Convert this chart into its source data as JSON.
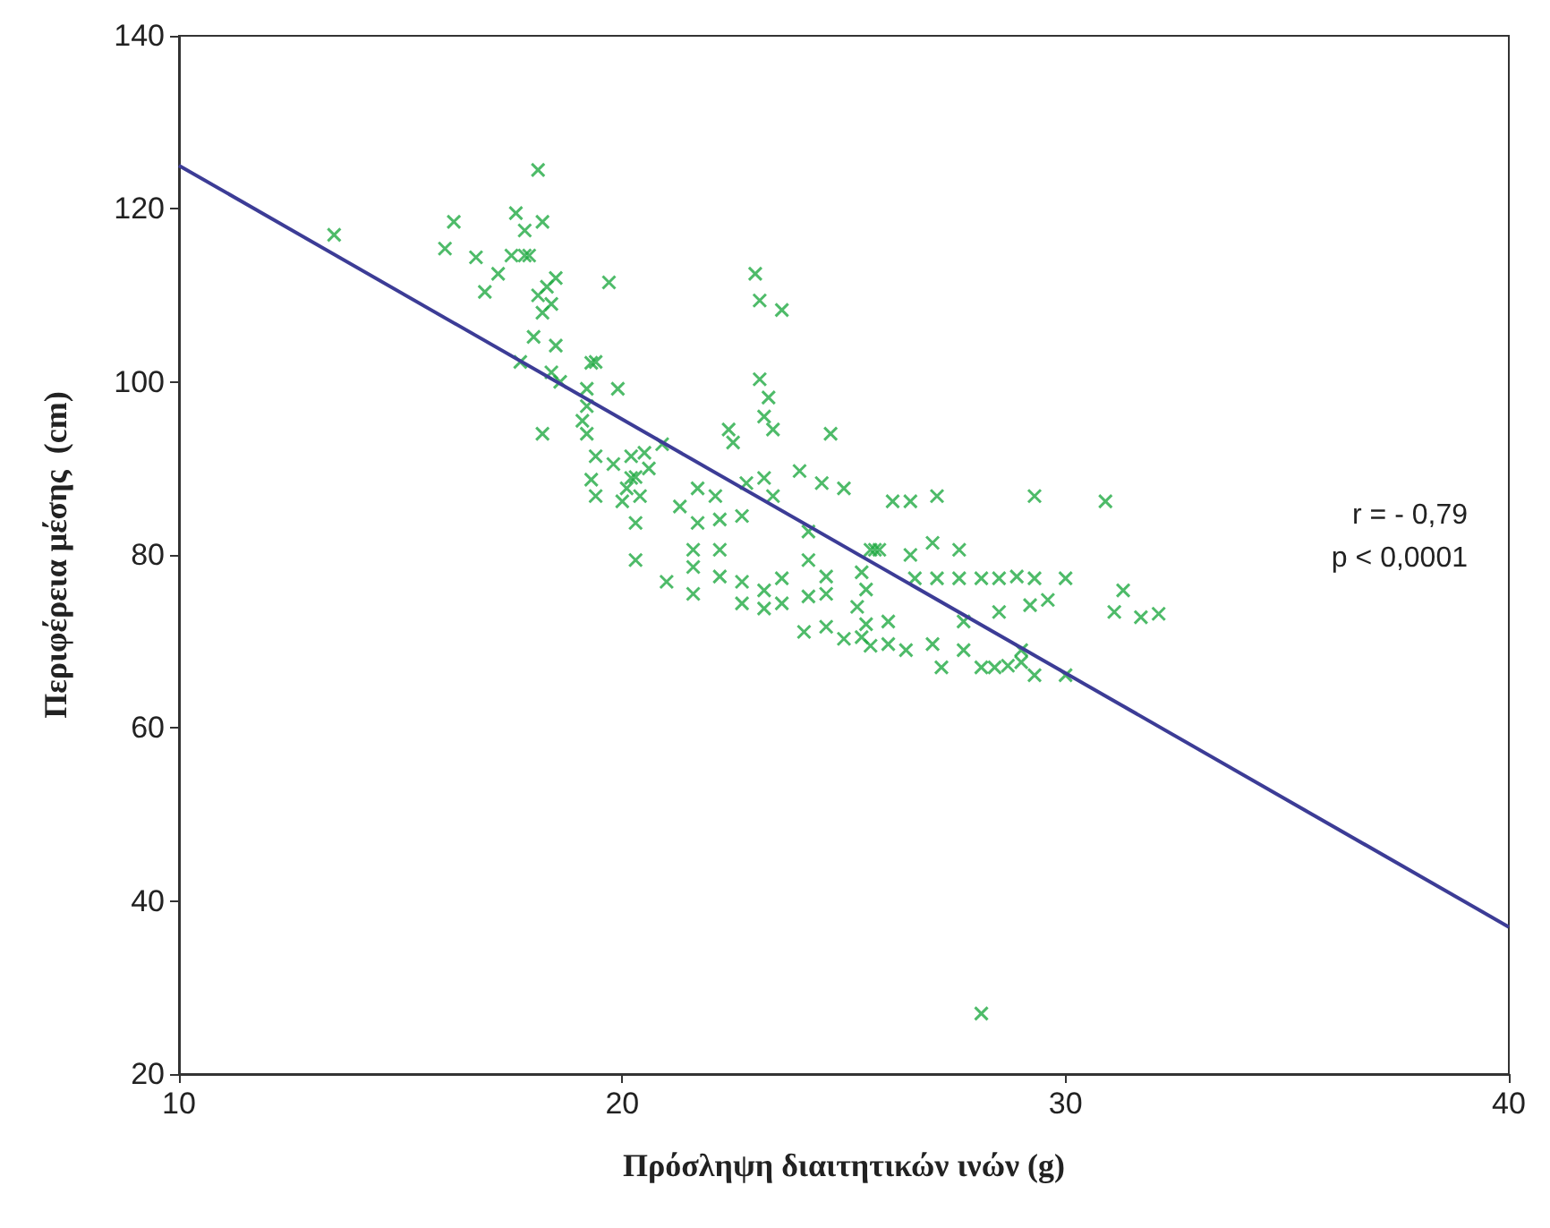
{
  "chart_data": {
    "type": "scatter",
    "xlabel": "Πρόσληψη διαιτητικών ινών (g)",
    "ylabel": "Περιφέρεια μέσης  (cm)",
    "xlim": [
      10,
      40
    ],
    "xticks": [
      10,
      20,
      30,
      40
    ],
    "ylim": [
      20,
      140
    ],
    "yticks": [
      20,
      40,
      60,
      80,
      100,
      120,
      140
    ],
    "grid": false,
    "annotations": [
      "r = - 0,79",
      "p < 0,0001"
    ],
    "series": [
      {
        "color": "#22aa44",
        "marker": "cross",
        "x": [
          13.5,
          18.1,
          16.2,
          16.0,
          17.6,
          17.8,
          18.2,
          16.7,
          17.5,
          17.8,
          17.9,
          17.2,
          16.9,
          19.7,
          18.1,
          18.3,
          18.5,
          18.4,
          18.2,
          18.0,
          18.5,
          19.3,
          17.7,
          18.4,
          18.6,
          19.2,
          19.9,
          19.2,
          19.1,
          19.2,
          18.2,
          19.4,
          20.2,
          20.5,
          20.9,
          23.0,
          23.1,
          23.6,
          19.4,
          23.1,
          23.3,
          23.2,
          23.4,
          22.4,
          24.7,
          22.5,
          20.2,
          20.1,
          20.4,
          20.0,
          19.4,
          19.3,
          20.3,
          21.3,
          21.7,
          22.1,
          22.8,
          23.2,
          23.4,
          24.0,
          24.5,
          25.0,
          21.7,
          22.2,
          22.7,
          24.2,
          20.3,
          21.6,
          21.6,
          22.2,
          22.2,
          21.0,
          21.6,
          22.7,
          22.7,
          23.2,
          23.2,
          23.6,
          23.6,
          24.2,
          24.2,
          24.6,
          24.6,
          24.1,
          24.6,
          25.6,
          25.8,
          25.4,
          25.5,
          25.3,
          25.5,
          25.4,
          25.6,
          25.0,
          26.0,
          26.1,
          26.5,
          27.1,
          29.3,
          30.9,
          25.7,
          26.5,
          27.0,
          27.6,
          26.6,
          27.1,
          27.6,
          28.1,
          28.5,
          28.9,
          29.3,
          30.0,
          31.3,
          31.1,
          31.7,
          32.1,
          28.5,
          29.2,
          29.6,
          26.0,
          26.4,
          27.0,
          27.2,
          27.7,
          28.1,
          28.4,
          28.7,
          29.0,
          29.3,
          30.0,
          27.7,
          29.0,
          28.1,
          20.6,
          20.3,
          19.8
        ],
        "values": [
          117,
          124.5,
          118.5,
          115.4,
          119.5,
          117.5,
          118.5,
          114.4,
          114.6,
          114.6,
          114.6,
          112.5,
          110.4,
          111.5,
          110,
          111,
          112,
          109,
          108,
          105.2,
          104.2,
          102.2,
          102.3,
          101.1,
          100,
          99.2,
          99.2,
          97.2,
          95.5,
          94,
          94,
          91.4,
          91.4,
          91.8,
          92.8,
          112.5,
          109.4,
          108.3,
          102.3,
          100.3,
          98.2,
          96,
          94.5,
          94.5,
          94,
          93,
          88.9,
          87.7,
          86.8,
          86.2,
          86.8,
          88.7,
          83.7,
          85.6,
          87.7,
          86.8,
          88.3,
          88.9,
          86.8,
          89.7,
          88.3,
          87.7,
          83.7,
          84.1,
          84.5,
          82.7,
          79.4,
          80.6,
          78.6,
          80.6,
          77.5,
          76.9,
          75.5,
          76.9,
          74.4,
          75.9,
          73.8,
          77.3,
          74.4,
          79.4,
          75.2,
          77.5,
          75.5,
          71.1,
          71.7,
          80.6,
          80.6,
          78,
          76,
          74,
          72,
          70.5,
          69.5,
          70.3,
          72.3,
          86.2,
          86.2,
          86.8,
          86.8,
          86.2,
          80.6,
          80,
          81.4,
          80.6,
          77.3,
          77.3,
          77.3,
          77.3,
          77.3,
          77.5,
          77.3,
          77.3,
          75.9,
          73.4,
          72.8,
          73.2,
          73.4,
          74.2,
          74.8,
          69.7,
          69,
          69.7,
          67,
          69,
          67,
          67,
          67.2,
          67.6,
          66.1,
          66.1,
          72.3,
          69,
          27,
          90,
          89,
          90.5
        ]
      },
      {
        "type": "line",
        "color": "#3c3c96",
        "marker": "none",
        "line_style": "solid",
        "x": [
          10,
          40
        ],
        "values": [
          125,
          37
        ]
      }
    ]
  }
}
